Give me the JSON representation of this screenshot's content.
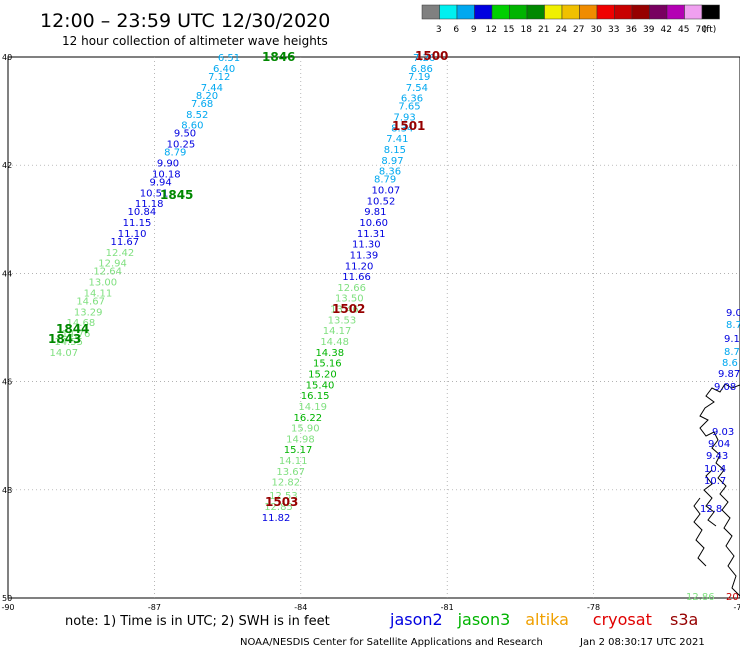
{
  "header": {
    "title": "12:00 – 23:59 UTC 12/30/2020",
    "subtitle": "12 hour collection of altimeter wave heights"
  },
  "legend": {
    "unit": "(ft)",
    "items": [
      {
        "label": "3",
        "color": "#808080"
      },
      {
        "label": "6",
        "color": "#00f0f0"
      },
      {
        "label": "9",
        "color": "#00a8f0"
      },
      {
        "label": "12",
        "color": "#0000e0"
      },
      {
        "label": "15",
        "color": "#00d000"
      },
      {
        "label": "18",
        "color": "#00b400"
      },
      {
        "label": "21",
        "color": "#008800"
      },
      {
        "label": "24",
        "color": "#f0f000"
      },
      {
        "label": "27",
        "color": "#f0c000"
      },
      {
        "label": "30",
        "color": "#f08c00"
      },
      {
        "label": "33",
        "color": "#f00000"
      },
      {
        "label": "36",
        "color": "#c80000"
      },
      {
        "label": "39",
        "color": "#960000"
      },
      {
        "label": "42",
        "color": "#780060"
      },
      {
        "label": "45",
        "color": "#b400b4"
      },
      {
        "label": "70",
        "color": "#f0a0f0"
      },
      {
        "label": "",
        "color": "#000000"
      }
    ]
  },
  "axes": {
    "lat_labels": [
      "40",
      "42",
      "44",
      "46",
      "48",
      "50"
    ],
    "lon_labels": [
      "-90",
      "-87",
      "-84",
      "-81",
      "-78",
      "-75"
    ]
  },
  "map_data": {
    "type": "track-map",
    "lat_range": [
      -50,
      -40
    ],
    "lon_range": [
      -90,
      -75
    ],
    "grid": true,
    "labels": [
      {
        "text": "6.51",
        "lat": -40.0,
        "lon": -85.7,
        "color": "#00a8f0"
      },
      {
        "text": "6.40",
        "lat": -40.2,
        "lon": -85.8,
        "color": "#00a8f0"
      },
      {
        "text": "7.12",
        "lat": -40.35,
        "lon": -85.9,
        "color": "#00a8f0"
      },
      {
        "text": "7.44",
        "lat": -40.55,
        "lon": -86.05,
        "color": "#00a8f0"
      },
      {
        "text": "8.20",
        "lat": -40.7,
        "lon": -86.15,
        "color": "#00a8f0"
      },
      {
        "text": "7.68",
        "lat": -40.85,
        "lon": -86.25,
        "color": "#00a8f0"
      },
      {
        "text": "8.52",
        "lat": -41.05,
        "lon": -86.35,
        "color": "#00a8f0"
      },
      {
        "text": "8.60",
        "lat": -41.25,
        "lon": -86.45,
        "color": "#00a8f0"
      },
      {
        "text": "9.50",
        "lat": -41.4,
        "lon": -86.6,
        "color": "#0000e0"
      },
      {
        "text": "10.25",
        "lat": -41.6,
        "lon": -86.75,
        "color": "#0000e0"
      },
      {
        "text": "8.79",
        "lat": -41.75,
        "lon": -86.8,
        "color": "#00a8f0"
      },
      {
        "text": "9.90",
        "lat": -41.95,
        "lon": -86.95,
        "color": "#0000e0"
      },
      {
        "text": "10.18",
        "lat": -42.15,
        "lon": -87.05,
        "color": "#0000e0"
      },
      {
        "text": "9.94",
        "lat": -42.3,
        "lon": -87.1,
        "color": "#0000e0"
      },
      {
        "text": "10.51",
        "lat": -42.5,
        "lon": -87.3,
        "color": "#0000e0"
      },
      {
        "text": "11.18",
        "lat": -42.7,
        "lon": -87.4,
        "color": "#0000e0"
      },
      {
        "text": "10.84",
        "lat": -42.85,
        "lon": -87.55,
        "color": "#0000e0"
      },
      {
        "text": "11.15",
        "lat": -43.05,
        "lon": -87.65,
        "color": "#0000e0"
      },
      {
        "text": "11.10",
        "lat": -43.25,
        "lon": -87.75,
        "color": "#0000e0"
      },
      {
        "text": "11.67",
        "lat": -43.4,
        "lon": -87.9,
        "color": "#0000e0"
      },
      {
        "text": "12.42",
        "lat": -43.6,
        "lon": -88.0,
        "color": "#80e080"
      },
      {
        "text": "12.94",
        "lat": -43.8,
        "lon": -88.15,
        "color": "#80e080"
      },
      {
        "text": "12.64",
        "lat": -43.95,
        "lon": -88.25,
        "color": "#80e080"
      },
      {
        "text": "13.00",
        "lat": -44.15,
        "lon": -88.35,
        "color": "#80e080"
      },
      {
        "text": "14.11",
        "lat": -44.35,
        "lon": -88.45,
        "color": "#80e080"
      },
      {
        "text": "14.67",
        "lat": -44.5,
        "lon": -88.6,
        "color": "#80e080"
      },
      {
        "text": "13.29",
        "lat": -44.7,
        "lon": -88.65,
        "color": "#80e080"
      },
      {
        "text": "14.68",
        "lat": -44.9,
        "lon": -88.8,
        "color": "#80e080"
      },
      {
        "text": "14.76",
        "lat": -45.1,
        "lon": -88.9,
        "color": "#80e080"
      },
      {
        "text": "14.55",
        "lat": -45.25,
        "lon": -89.05,
        "color": "#80e080"
      },
      {
        "text": "14.07",
        "lat": -45.45,
        "lon": -89.15,
        "color": "#80e080"
      },
      {
        "text": "7.26",
        "lat": -40.0,
        "lon": -81.7,
        "color": "#00a8f0"
      },
      {
        "text": "6.86",
        "lat": -40.2,
        "lon": -81.75,
        "color": "#00a8f0"
      },
      {
        "text": "7.19",
        "lat": -40.35,
        "lon": -81.8,
        "color": "#00a8f0"
      },
      {
        "text": "7.54",
        "lat": -40.55,
        "lon": -81.85,
        "color": "#00a8f0"
      },
      {
        "text": "6.36",
        "lat": -40.75,
        "lon": -81.95,
        "color": "#00a8f0"
      },
      {
        "text": "7.65",
        "lat": -40.9,
        "lon": -82.0,
        "color": "#00a8f0"
      },
      {
        "text": "7.93",
        "lat": -41.1,
        "lon": -82.1,
        "color": "#00a8f0"
      },
      {
        "text": "8.34",
        "lat": -41.3,
        "lon": -82.15,
        "color": "#00a8f0"
      },
      {
        "text": "7.41",
        "lat": -41.5,
        "lon": -82.25,
        "color": "#00a8f0"
      },
      {
        "text": "8.15",
        "lat": -41.7,
        "lon": -82.3,
        "color": "#00a8f0"
      },
      {
        "text": "8.97",
        "lat": -41.9,
        "lon": -82.35,
        "color": "#00a8f0"
      },
      {
        "text": "8.36",
        "lat": -42.1,
        "lon": -82.4,
        "color": "#00a8f0"
      },
      {
        "text": "8.79",
        "lat": -42.25,
        "lon": -82.5,
        "color": "#00a8f0"
      },
      {
        "text": "10.07",
        "lat": -42.45,
        "lon": -82.55,
        "color": "#0000e0"
      },
      {
        "text": "10.52",
        "lat": -42.65,
        "lon": -82.65,
        "color": "#0000e0"
      },
      {
        "text": "9.81",
        "lat": -42.85,
        "lon": -82.7,
        "color": "#0000e0"
      },
      {
        "text": "10.60",
        "lat": -43.05,
        "lon": -82.8,
        "color": "#0000e0"
      },
      {
        "text": "11.31",
        "lat": -43.25,
        "lon": -82.85,
        "color": "#0000e0"
      },
      {
        "text": "11.30",
        "lat": -43.45,
        "lon": -82.95,
        "color": "#0000e0"
      },
      {
        "text": "11.39",
        "lat": -43.65,
        "lon": -83.0,
        "color": "#0000e0"
      },
      {
        "text": "11.20",
        "lat": -43.85,
        "lon": -83.1,
        "color": "#0000e0"
      },
      {
        "text": "11.66",
        "lat": -44.05,
        "lon": -83.15,
        "color": "#0000e0"
      },
      {
        "text": "12.66",
        "lat": -44.25,
        "lon": -83.25,
        "color": "#80e080"
      },
      {
        "text": "13.50",
        "lat": -44.45,
        "lon": -83.3,
        "color": "#80e080"
      },
      {
        "text": "13.46",
        "lat": -44.65,
        "lon": -83.4,
        "color": "#80e080"
      },
      {
        "text": "13.53",
        "lat": -44.85,
        "lon": -83.45,
        "color": "#80e080"
      },
      {
        "text": "14.17",
        "lat": -45.05,
        "lon": -83.55,
        "color": "#80e080"
      },
      {
        "text": "14.48",
        "lat": -45.25,
        "lon": -83.6,
        "color": "#80e080"
      },
      {
        "text": "14.38",
        "lat": -45.45,
        "lon": -83.7,
        "color": "#00b400"
      },
      {
        "text": "15.16",
        "lat": -45.65,
        "lon": -83.75,
        "color": "#00b400"
      },
      {
        "text": "15.20",
        "lat": -45.85,
        "lon": -83.85,
        "color": "#00b400"
      },
      {
        "text": "15.40",
        "lat": -46.05,
        "lon": -83.9,
        "color": "#00b400"
      },
      {
        "text": "16.15",
        "lat": -46.25,
        "lon": -84.0,
        "color": "#00b400"
      },
      {
        "text": "14.19",
        "lat": -46.45,
        "lon": -84.05,
        "color": "#80e080"
      },
      {
        "text": "16.22",
        "lat": -46.65,
        "lon": -84.15,
        "color": "#00b400"
      },
      {
        "text": "15.90",
        "lat": -46.85,
        "lon": -84.2,
        "color": "#80e080"
      },
      {
        "text": "14.98",
        "lat": -47.05,
        "lon": -84.3,
        "color": "#80e080"
      },
      {
        "text": "15.17",
        "lat": -47.25,
        "lon": -84.35,
        "color": "#00b400"
      },
      {
        "text": "14.11",
        "lat": -47.45,
        "lon": -84.45,
        "color": "#80e080"
      },
      {
        "text": "13.67",
        "lat": -47.65,
        "lon": -84.5,
        "color": "#80e080"
      },
      {
        "text": "12.82",
        "lat": -47.85,
        "lon": -84.6,
        "color": "#80e080"
      },
      {
        "text": "12.53",
        "lat": -48.1,
        "lon": -84.65,
        "color": "#80e080"
      },
      {
        "text": "12.85",
        "lat": -48.3,
        "lon": -84.75,
        "color": "#80e080"
      },
      {
        "text": "11.82",
        "lat": -48.5,
        "lon": -84.8,
        "color": "#0000e0"
      }
    ],
    "time_labels": [
      {
        "text": "1846",
        "color": "#008800"
      },
      {
        "text": "1845",
        "color": "#008800"
      },
      {
        "text": "1844",
        "color": "#008800"
      },
      {
        "text": "1843",
        "color": "#008800"
      },
      {
        "text": "1500",
        "color": "#960000"
      },
      {
        "text": "1501",
        "color": "#960000"
      },
      {
        "text": "1502",
        "color": "#960000"
      },
      {
        "text": "1503",
        "color": "#960000"
      }
    ],
    "edge_labels": [
      {
        "text": "9.03",
        "color": "#0000e0"
      },
      {
        "text": "9.04",
        "color": "#0000e0"
      },
      {
        "text": "9.43",
        "color": "#0000e0"
      },
      {
        "text": "10.4",
        "color": "#0000e0"
      },
      {
        "text": "10.7",
        "color": "#0000e0"
      },
      {
        "text": "12.8",
        "color": "#0000e0"
      },
      {
        "text": "12.86",
        "color": "#80e080"
      },
      {
        "text": "9.0",
        "color": "#0000e0"
      },
      {
        "text": "8.7",
        "color": "#00a8f0"
      },
      {
        "text": "9.1",
        "color": "#0000e0"
      },
      {
        "text": "8.7",
        "color": "#00a8f0"
      },
      {
        "text": "8.6",
        "color": "#00a8f0"
      },
      {
        "text": "9.87",
        "color": "#0000e0"
      },
      {
        "text": "9.08",
        "color": "#0000e0"
      },
      {
        "text": "20",
        "color": "#c80000"
      }
    ]
  },
  "footer": {
    "note": "note:  1) Time is in UTC;  2) SWH is in feet",
    "missions": [
      {
        "label": "jason2",
        "color": "#0000e0"
      },
      {
        "label": "jason3",
        "color": "#00b400"
      },
      {
        "label": "altika",
        "color": "#f0a000"
      },
      {
        "label": "cryosat",
        "color": "#e00000"
      },
      {
        "label": "s3a",
        "color": "#960000"
      }
    ],
    "credit": "NOAA/NESDIS Center for Satellite Applications and Research",
    "timestamp": "Jan  2 08:30:17 UTC 2021"
  }
}
